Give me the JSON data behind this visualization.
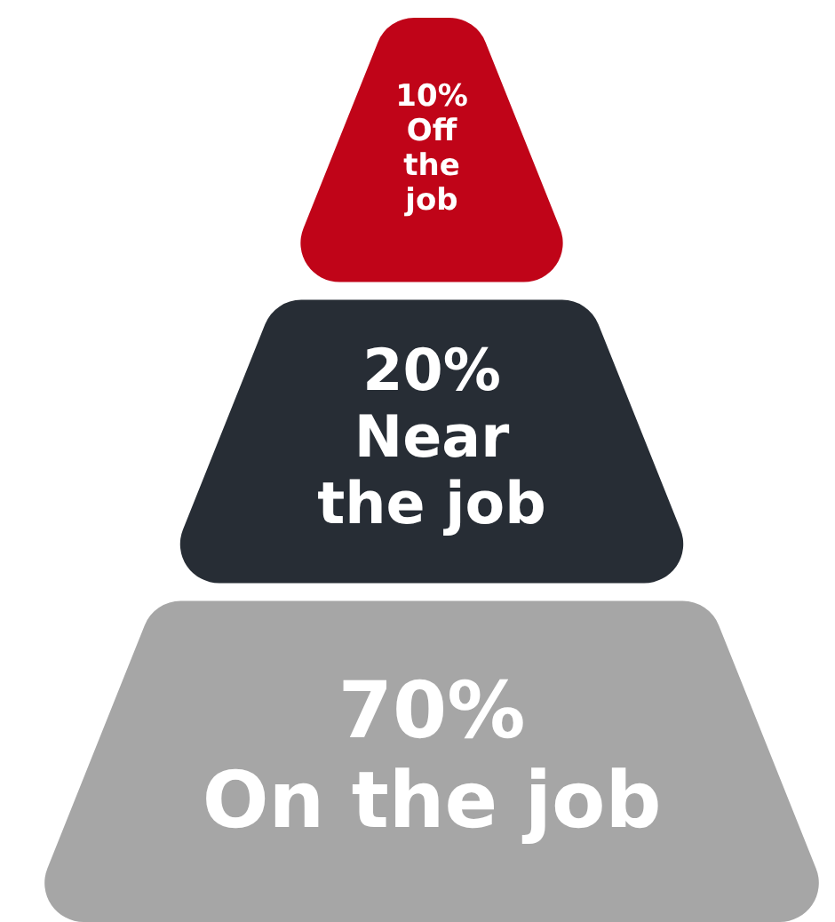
{
  "chart_data": {
    "type": "other",
    "categories": [
      "Off the job",
      "Near the job",
      "On the job"
    ],
    "values": [
      10,
      20,
      70
    ],
    "value_labels": [
      "10%",
      "20%",
      "70%"
    ],
    "colors": [
      "#c00418",
      "#272d35",
      "#a6a6a6"
    ]
  }
}
